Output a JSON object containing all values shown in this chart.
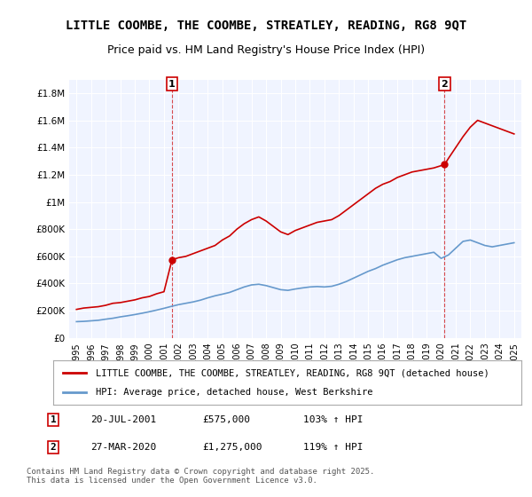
{
  "title": "LITTLE COOMBE, THE COOMBE, STREATLEY, READING, RG8 9QT",
  "subtitle": "Price paid vs. HM Land Registry's House Price Index (HPI)",
  "title_fontsize": 10,
  "subtitle_fontsize": 9,
  "ylim": [
    0,
    1900000
  ],
  "yticks": [
    0,
    200000,
    400000,
    600000,
    800000,
    1000000,
    1200000,
    1400000,
    1600000,
    1800000
  ],
  "ytick_labels": [
    "£0",
    "£200K",
    "£400K",
    "£600K",
    "£800K",
    "£1M",
    "£1.2M",
    "£1.4M",
    "£1.6M",
    "£1.8M"
  ],
  "xlim_start": 1994.5,
  "xlim_end": 2025.5,
  "xticks": [
    1995,
    1996,
    1997,
    1998,
    1999,
    2000,
    2001,
    2002,
    2003,
    2004,
    2005,
    2006,
    2007,
    2008,
    2009,
    2010,
    2011,
    2012,
    2013,
    2014,
    2015,
    2016,
    2017,
    2018,
    2019,
    2020,
    2021,
    2022,
    2023,
    2024,
    2025
  ],
  "red_color": "#cc0000",
  "blue_color": "#6699cc",
  "dashed_red_color": "#cc0000",
  "background_color": "#f0f4ff",
  "plot_bg_color": "#f0f4ff",
  "transaction1_x": 2001.55,
  "transaction1_y": 575000,
  "transaction2_x": 2020.24,
  "transaction2_y": 1275000,
  "legend_label_red": "LITTLE COOMBE, THE COOMBE, STREATLEY, READING, RG8 9QT (detached house)",
  "legend_label_blue": "HPI: Average price, detached house, West Berkshire",
  "annotation1_label": "1",
  "annotation2_label": "2",
  "footer_line1": "Contains HM Land Registry data © Crown copyright and database right 2025.",
  "footer_line2": "This data is licensed under the Open Government Licence v3.0.",
  "table_row1": [
    "1",
    "20-JUL-2001",
    "£575,000",
    "103% ↑ HPI"
  ],
  "table_row2": [
    "2",
    "27-MAR-2020",
    "£1,275,000",
    "119% ↑ HPI"
  ],
  "red_x": [
    1995.0,
    1995.5,
    1996.0,
    1996.5,
    1997.0,
    1997.5,
    1998.0,
    1998.5,
    1999.0,
    1999.5,
    2000.0,
    2000.5,
    2001.0,
    2001.55,
    2002.0,
    2002.5,
    2003.0,
    2003.5,
    2004.0,
    2004.5,
    2005.0,
    2005.5,
    2006.0,
    2006.5,
    2007.0,
    2007.5,
    2008.0,
    2008.5,
    2009.0,
    2009.5,
    2010.0,
    2010.5,
    2011.0,
    2011.5,
    2012.0,
    2012.5,
    2013.0,
    2013.5,
    2014.0,
    2014.5,
    2015.0,
    2015.5,
    2016.0,
    2016.5,
    2017.0,
    2017.5,
    2018.0,
    2018.5,
    2019.0,
    2019.5,
    2020.24,
    2020.5,
    2021.0,
    2021.5,
    2022.0,
    2022.5,
    2023.0,
    2023.5,
    2024.0,
    2024.5,
    2025.0
  ],
  "red_y": [
    210000,
    220000,
    225000,
    230000,
    240000,
    255000,
    260000,
    270000,
    280000,
    295000,
    305000,
    325000,
    340000,
    575000,
    590000,
    600000,
    620000,
    640000,
    660000,
    680000,
    720000,
    750000,
    800000,
    840000,
    870000,
    890000,
    860000,
    820000,
    780000,
    760000,
    790000,
    810000,
    830000,
    850000,
    860000,
    870000,
    900000,
    940000,
    980000,
    1020000,
    1060000,
    1100000,
    1130000,
    1150000,
    1180000,
    1200000,
    1220000,
    1230000,
    1240000,
    1250000,
    1275000,
    1320000,
    1400000,
    1480000,
    1550000,
    1600000,
    1580000,
    1560000,
    1540000,
    1520000,
    1500000
  ],
  "blue_x": [
    1995.0,
    1995.5,
    1996.0,
    1996.5,
    1997.0,
    1997.5,
    1998.0,
    1998.5,
    1999.0,
    1999.5,
    2000.0,
    2000.5,
    2001.0,
    2001.5,
    2002.0,
    2002.5,
    2003.0,
    2003.5,
    2004.0,
    2004.5,
    2005.0,
    2005.5,
    2006.0,
    2006.5,
    2007.0,
    2007.5,
    2008.0,
    2008.5,
    2009.0,
    2009.5,
    2010.0,
    2010.5,
    2011.0,
    2011.5,
    2012.0,
    2012.5,
    2013.0,
    2013.5,
    2014.0,
    2014.5,
    2015.0,
    2015.5,
    2016.0,
    2016.5,
    2017.0,
    2017.5,
    2018.0,
    2018.5,
    2019.0,
    2019.5,
    2020.0,
    2020.5,
    2021.0,
    2021.5,
    2022.0,
    2022.5,
    2023.0,
    2023.5,
    2024.0,
    2024.5,
    2025.0
  ],
  "blue_y": [
    120000,
    122000,
    126000,
    130000,
    138000,
    145000,
    155000,
    163000,
    172000,
    182000,
    193000,
    205000,
    218000,
    232000,
    245000,
    255000,
    265000,
    278000,
    295000,
    310000,
    322000,
    335000,
    355000,
    375000,
    390000,
    395000,
    385000,
    370000,
    355000,
    350000,
    360000,
    368000,
    375000,
    378000,
    375000,
    380000,
    395000,
    415000,
    440000,
    465000,
    490000,
    510000,
    535000,
    555000,
    575000,
    590000,
    600000,
    610000,
    620000,
    630000,
    585000,
    610000,
    660000,
    710000,
    720000,
    700000,
    680000,
    670000,
    680000,
    690000,
    700000
  ]
}
